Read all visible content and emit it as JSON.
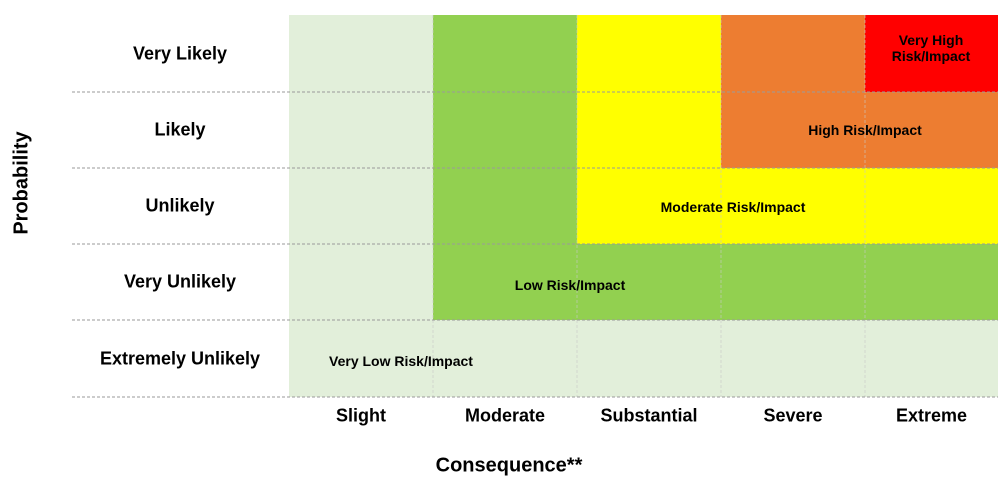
{
  "title_y": "Probability",
  "title_x": "Consequence**",
  "rows": [
    "Very Likely",
    "Likely",
    "Unlikely",
    "Very Unlikely",
    "Extremely Unlikely"
  ],
  "columns": [
    "Slight",
    "Moderate",
    "Substantial",
    "Severe",
    "Extreme"
  ],
  "zones": [
    {
      "label": "Very Low Risk/Impact",
      "color": "#e2efda"
    },
    {
      "label": "Low Risk/Impact",
      "color": "#92d050"
    },
    {
      "label": "Moderate Risk/Impact",
      "color": "#ffff00"
    },
    {
      "label": "High Risk/Impact",
      "color": "#ed7d31"
    },
    {
      "label": "Very High Risk/Impact",
      "color": "#ff0000"
    }
  ]
}
